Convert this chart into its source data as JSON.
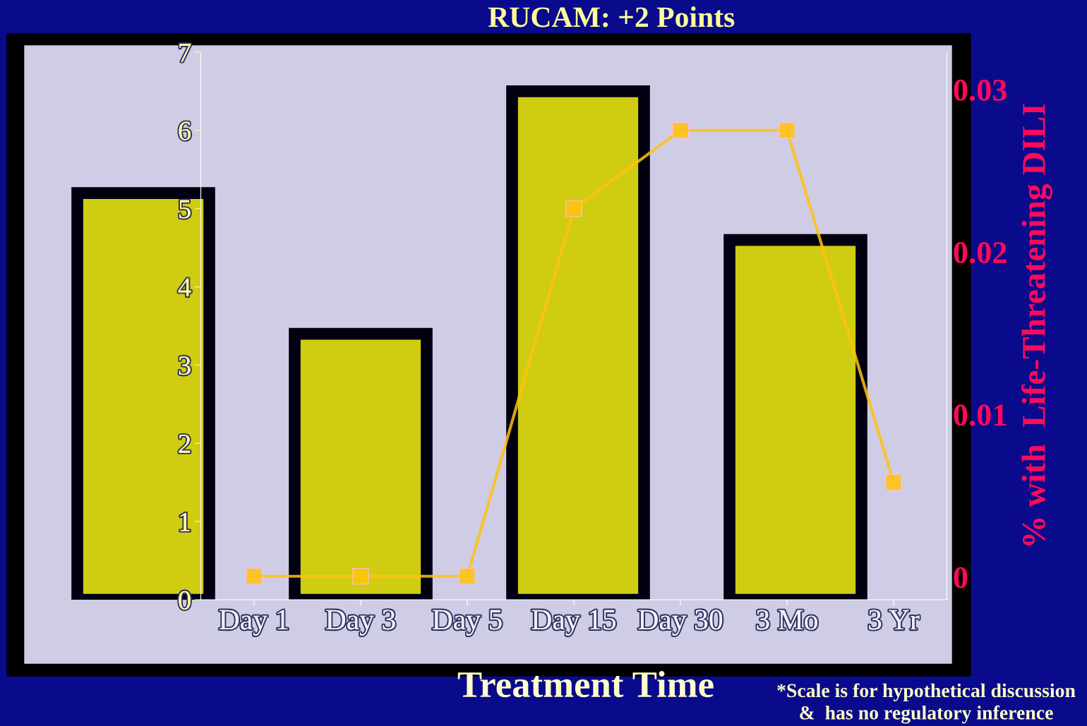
{
  "chart_data": [
    {
      "type": "bar",
      "categories": [
        null,
        null,
        null,
        null
      ],
      "values": [
        5.2,
        3.4,
        6.5,
        4.6
      ],
      "color": "#d0cc12",
      "ylim": [
        0,
        7
      ],
      "yticks": [
        0,
        1,
        2,
        3,
        4,
        5,
        6,
        7
      ],
      "tick_labels": false,
      "grid": false,
      "legend": false
    },
    {
      "type": "line",
      "title": "RUCAM: +2 Points",
      "xlabel": "Treatment Time",
      "y2label": "% with  Life-Threatening DILI",
      "categories": [
        "Day 1",
        "Day 3",
        "Day 5",
        "Day 15",
        "Day 30",
        "3 Mo",
        "3 Yr"
      ],
      "series": [
        {
          "color": "#ffc20e",
          "values": [
            0.3,
            0.3,
            0.3,
            5,
            6,
            6,
            1.5
          ],
          "marker": "square"
        }
      ],
      "ylim": [
        0,
        7
      ],
      "yticks": [
        0,
        1,
        2,
        3,
        4,
        5,
        6,
        7
      ],
      "y2lim": [
        -0.0014,
        0.0323
      ],
      "y2ticks": [
        0,
        0.01,
        0.02,
        0.03
      ],
      "grid": false,
      "legend": false,
      "annotations": [
        "*Scale is for hypothetical discussion\n&  has no regulatory inference"
      ]
    }
  ]
}
